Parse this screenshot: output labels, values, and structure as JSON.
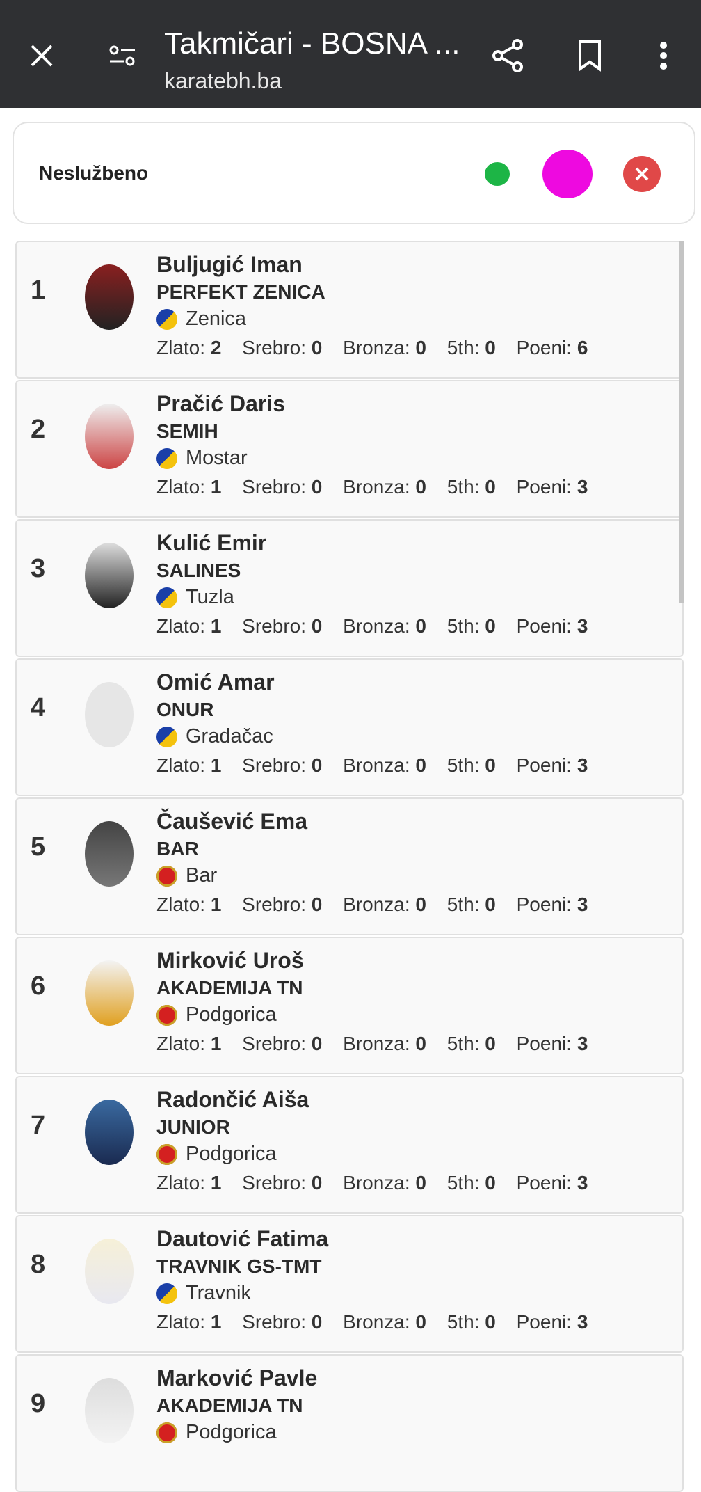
{
  "header": {
    "title": "Takmičari - BOSNA ...",
    "url": "karatebh.ba",
    "icons": [
      "close-icon",
      "tune-icon",
      "share-icon",
      "bookmark-icon",
      "more-vert-icon"
    ]
  },
  "status": {
    "label": "Neslužbeno",
    "colors": {
      "green": "#1db546",
      "magenta": "#ee09e0",
      "red": "#e04848"
    }
  },
  "stat_labels": {
    "gold": "Zlato:",
    "silver": "Srebro:",
    "bronze": "Bronza:",
    "fifth": "5th:",
    "points": "Poeni:"
  },
  "competitors": [
    {
      "rank": "1",
      "name": "Buljugić Iman",
      "club": "PERFEKT ZENICA",
      "city": "Zenica",
      "country": "BIH",
      "gold": "2",
      "silver": "0",
      "bronze": "0",
      "fifth": "0",
      "points": "6"
    },
    {
      "rank": "2",
      "name": "Pračić Daris",
      "club": "SEMIH",
      "city": "Mostar",
      "country": "BIH",
      "gold": "1",
      "silver": "0",
      "bronze": "0",
      "fifth": "0",
      "points": "3"
    },
    {
      "rank": "3",
      "name": "Kulić Emir",
      "club": "SALINES",
      "city": "Tuzla",
      "country": "BIH",
      "gold": "1",
      "silver": "0",
      "bronze": "0",
      "fifth": "0",
      "points": "3"
    },
    {
      "rank": "4",
      "name": "Omić Amar",
      "club": "ONUR",
      "city": "Gradačac",
      "country": "BIH",
      "gold": "1",
      "silver": "0",
      "bronze": "0",
      "fifth": "0",
      "points": "3"
    },
    {
      "rank": "5",
      "name": "Čaušević Ema",
      "club": "BAR",
      "city": "Bar",
      "country": "MNE",
      "gold": "1",
      "silver": "0",
      "bronze": "0",
      "fifth": "0",
      "points": "3"
    },
    {
      "rank": "6",
      "name": "Mirković Uroš",
      "club": "AKADEMIJA TN",
      "city": "Podgorica",
      "country": "MNE",
      "gold": "1",
      "silver": "0",
      "bronze": "0",
      "fifth": "0",
      "points": "3"
    },
    {
      "rank": "7",
      "name": "Radončić Aiša",
      "club": "JUNIOR",
      "city": "Podgorica",
      "country": "MNE",
      "gold": "1",
      "silver": "0",
      "bronze": "0",
      "fifth": "0",
      "points": "3"
    },
    {
      "rank": "8",
      "name": "Dautović Fatima",
      "club": "TRAVNIK GS-TMT",
      "city": "Travnik",
      "country": "BIH",
      "gold": "1",
      "silver": "0",
      "bronze": "0",
      "fifth": "0",
      "points": "3"
    },
    {
      "rank": "9",
      "name": "Marković Pavle",
      "club": "AKADEMIJA TN",
      "city": "Podgorica",
      "country": "MNE",
      "gold": "",
      "silver": "",
      "bronze": "",
      "fifth": "",
      "points": ""
    }
  ]
}
